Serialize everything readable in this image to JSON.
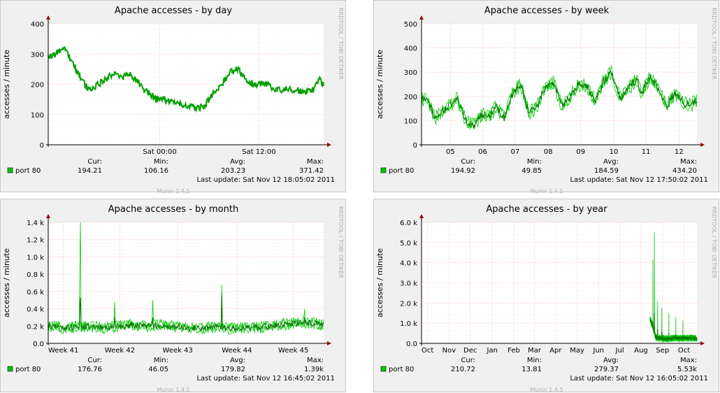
{
  "side_label": "RRDTOOL / TOBI OETIKER",
  "footer": "Munin 1.4.5",
  "legend_headers": {
    "cur": "Cur:",
    "min": "Min:",
    "avg": "Avg:",
    "max": "Max:"
  },
  "series_label": "port 80",
  "series_color": "#00cc00",
  "series_dark_color": "#008000",
  "chart_data": [
    {
      "type": "line",
      "title": "Apache accesses - by day",
      "ylabel": "accesses / minute",
      "yticks": [
        "0",
        "100",
        "200",
        "300",
        "400"
      ],
      "ylim": [
        0,
        400
      ],
      "xticks": [
        {
          "label": "Sat 00:00",
          "t": 0.405
        },
        {
          "label": "Sat 12:00",
          "t": 0.765
        }
      ],
      "grid": true,
      "profile": [
        [
          0,
          290
        ],
        [
          0.03,
          300
        ],
        [
          0.06,
          320
        ],
        [
          0.09,
          270
        ],
        [
          0.12,
          215
        ],
        [
          0.15,
          180
        ],
        [
          0.18,
          200
        ],
        [
          0.21,
          215
        ],
        [
          0.24,
          240
        ],
        [
          0.27,
          225
        ],
        [
          0.3,
          230
        ],
        [
          0.33,
          200
        ],
        [
          0.36,
          175
        ],
        [
          0.39,
          150
        ],
        [
          0.42,
          150
        ],
        [
          0.45,
          140
        ],
        [
          0.48,
          135
        ],
        [
          0.51,
          125
        ],
        [
          0.54,
          120
        ],
        [
          0.57,
          130
        ],
        [
          0.6,
          170
        ],
        [
          0.63,
          200
        ],
        [
          0.66,
          240
        ],
        [
          0.69,
          250
        ],
        [
          0.72,
          210
        ],
        [
          0.75,
          200
        ],
        [
          0.78,
          205
        ],
        [
          0.81,
          190
        ],
        [
          0.84,
          180
        ],
        [
          0.87,
          185
        ],
        [
          0.9,
          180
        ],
        [
          0.93,
          175
        ],
        [
          0.96,
          180
        ],
        [
          0.985,
          220
        ],
        [
          1,
          195
        ]
      ],
      "noise": 22,
      "spikes": [],
      "dark_only": true,
      "stats": {
        "cur": "194.21",
        "min": "106.16",
        "avg": "203.23",
        "max": "371.42"
      },
      "last_update": "Last update: Sat Nov 12 18:05:02 2011"
    },
    {
      "type": "line",
      "title": "Apache accesses - by week",
      "ylabel": "accesses / minute",
      "yticks": [
        "0",
        "100",
        "200",
        "300",
        "400",
        "500"
      ],
      "ylim": [
        0,
        500
      ],
      "xticks": [
        {
          "label": "05",
          "t": 0.105
        },
        {
          "label": "06",
          "t": 0.222
        },
        {
          "label": "07",
          "t": 0.34
        },
        {
          "label": "08",
          "t": 0.46
        },
        {
          "label": "09",
          "t": 0.578
        },
        {
          "label": "10",
          "t": 0.698
        },
        {
          "label": "11",
          "t": 0.815
        },
        {
          "label": "12",
          "t": 0.935
        }
      ],
      "grid": true,
      "profile": [
        [
          0,
          190
        ],
        [
          0.02,
          185
        ],
        [
          0.05,
          110
        ],
        [
          0.08,
          140
        ],
        [
          0.1,
          160
        ],
        [
          0.13,
          190
        ],
        [
          0.16,
          100
        ],
        [
          0.19,
          80
        ],
        [
          0.22,
          125
        ],
        [
          0.25,
          120
        ],
        [
          0.27,
          160
        ],
        [
          0.3,
          110
        ],
        [
          0.33,
          210
        ],
        [
          0.36,
          250
        ],
        [
          0.39,
          130
        ],
        [
          0.42,
          160
        ],
        [
          0.45,
          240
        ],
        [
          0.48,
          255
        ],
        [
          0.51,
          160
        ],
        [
          0.54,
          200
        ],
        [
          0.57,
          250
        ],
        [
          0.6,
          240
        ],
        [
          0.63,
          180
        ],
        [
          0.66,
          260
        ],
        [
          0.69,
          300
        ],
        [
          0.72,
          190
        ],
        [
          0.75,
          230
        ],
        [
          0.78,
          270
        ],
        [
          0.8,
          215
        ],
        [
          0.83,
          280
        ],
        [
          0.86,
          230
        ],
        [
          0.89,
          160
        ],
        [
          0.92,
          210
        ],
        [
          0.95,
          175
        ],
        [
          0.98,
          165
        ],
        [
          1,
          185
        ]
      ],
      "noise": 30,
      "spikes": [],
      "dark_only": false,
      "stats": {
        "cur": "194.92",
        "min": "49.85",
        "avg": "184.59",
        "max": "434.20"
      },
      "last_update": "Last update: Sat Nov 12 17:50:02 2011"
    },
    {
      "type": "line",
      "title": "Apache accesses - by month",
      "ylabel": "accesses / minute",
      "yticks": [
        "0.0",
        "0.2 k",
        "0.4 k",
        "0.6 k",
        "0.8 k",
        "1.0 k",
        "1.2 k",
        "1.4 k"
      ],
      "ylim": [
        0,
        1400
      ],
      "xticks": [
        {
          "label": "Week 41",
          "t": 0.055
        },
        {
          "label": "Week 42",
          "t": 0.26
        },
        {
          "label": "Week 43",
          "t": 0.47
        },
        {
          "label": "Week 44",
          "t": 0.685
        },
        {
          "label": "Week 45",
          "t": 0.89
        }
      ],
      "grid": true,
      "profile": [
        [
          0,
          200
        ],
        [
          0.05,
          180
        ],
        [
          0.1,
          190
        ],
        [
          0.15,
          200
        ],
        [
          0.2,
          180
        ],
        [
          0.25,
          200
        ],
        [
          0.3,
          210
        ],
        [
          0.35,
          200
        ],
        [
          0.4,
          210
        ],
        [
          0.45,
          200
        ],
        [
          0.5,
          180
        ],
        [
          0.55,
          170
        ],
        [
          0.6,
          190
        ],
        [
          0.65,
          170
        ],
        [
          0.7,
          180
        ],
        [
          0.75,
          180
        ],
        [
          0.8,
          200
        ],
        [
          0.85,
          220
        ],
        [
          0.9,
          230
        ],
        [
          0.95,
          240
        ],
        [
          1,
          210
        ]
      ],
      "noise": 70,
      "spikes": [
        [
          0.118,
          1400,
          530
        ],
        [
          0.115,
          850,
          400
        ],
        [
          0.24,
          480,
          300
        ],
        [
          0.38,
          500,
          300
        ],
        [
          0.63,
          680,
          560
        ],
        [
          0.93,
          400,
          300
        ]
      ],
      "dark_only": false,
      "stats": {
        "cur": "176.76",
        "min": "46.05",
        "avg": "179.82",
        "max": "1.39k"
      },
      "last_update": "Last update: Sat Nov 12 16:45:02 2011"
    },
    {
      "type": "line",
      "title": "Apache accesses - by year",
      "ylabel": "accesses / minute",
      "yticks": [
        "0.0",
        "1.0 k",
        "2.0 k",
        "3.0 k",
        "4.0 k",
        "5.0 k",
        "6.0 k"
      ],
      "ylim": [
        0,
        6000
      ],
      "xticks": [
        {
          "label": "Oct",
          "t": 0.022
        },
        {
          "label": "Nov",
          "t": 0.1
        },
        {
          "label": "Dec",
          "t": 0.177
        },
        {
          "label": "Jan",
          "t": 0.257
        },
        {
          "label": "Feb",
          "t": 0.335
        },
        {
          "label": "Mar",
          "t": 0.41
        },
        {
          "label": "Apr",
          "t": 0.487
        },
        {
          "label": "May",
          "t": 0.565
        },
        {
          "label": "Jun",
          "t": 0.643
        },
        {
          "label": "Jul",
          "t": 0.72
        },
        {
          "label": "Aug",
          "t": 0.797
        },
        {
          "label": "Sep",
          "t": 0.875
        },
        {
          "label": "Oct",
          "t": 0.953
        }
      ],
      "grid": true,
      "data_start": 0.83,
      "profile": [
        [
          0,
          1200
        ],
        [
          0.06,
          800
        ],
        [
          0.12,
          300
        ],
        [
          0.2,
          250
        ],
        [
          0.35,
          220
        ],
        [
          0.5,
          260
        ],
        [
          0.65,
          250
        ],
        [
          0.8,
          260
        ],
        [
          1,
          250
        ]
      ],
      "noise": 180,
      "spikes": [
        [
          0.09,
          5500,
          1500
        ],
        [
          0.06,
          4150,
          1100
        ],
        [
          0.16,
          2050,
          700
        ],
        [
          0.25,
          1750,
          600
        ],
        [
          0.4,
          1500,
          500
        ],
        [
          0.55,
          1300,
          450
        ],
        [
          0.7,
          1150,
          400
        ]
      ],
      "dark_only": false,
      "stats": {
        "cur": "210.72",
        "min": "13.81",
        "avg": "279.37",
        "max": "5.53k"
      },
      "last_update": "Last update: Sat Nov 12 16:05:02 2011"
    }
  ]
}
